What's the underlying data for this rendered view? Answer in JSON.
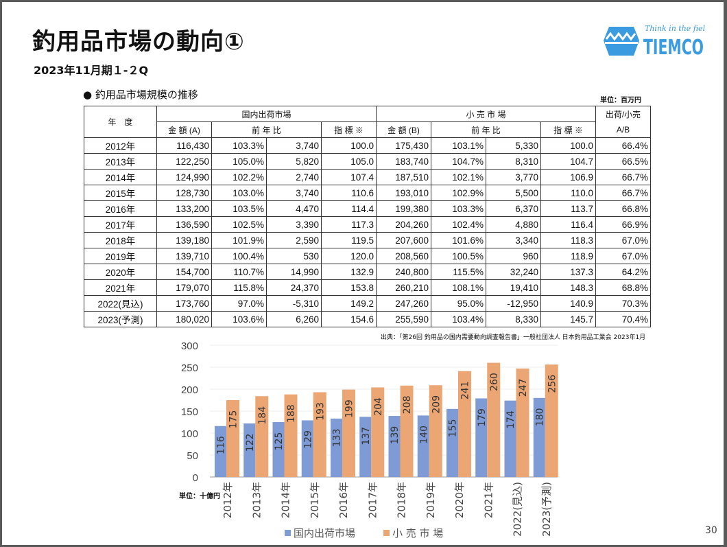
{
  "title": "釣用品市場の動向①",
  "subtitle": "2023年11月期１-２Q",
  "logo": {
    "tagline": "Think in the field.",
    "name": "TIEMCO",
    "color": "#3a9be0"
  },
  "section_title": "● 釣用品市場規模の推移",
  "unit_label": "単位：百万円",
  "table": {
    "headers": {
      "year": "年　度",
      "domestic": "国内出荷市場",
      "retail": "小 売 市 場",
      "ratio_top": "出荷/小売",
      "amount_a": "金 額 (A)",
      "yoy": "前 年 比",
      "index": "指 標 ※",
      "amount_b": "金 額 (B)",
      "ratio": "A/B"
    },
    "rows": [
      [
        "2012年",
        "116,430",
        "103.3%",
        "3,740",
        "100.0",
        "175,430",
        "103.1%",
        "5,330",
        "100.0",
        "66.4%"
      ],
      [
        "2013年",
        "122,250",
        "105.0%",
        "5,820",
        "105.0",
        "183,740",
        "104.7%",
        "8,310",
        "104.7",
        "66.5%"
      ],
      [
        "2014年",
        "124,990",
        "102.2%",
        "2,740",
        "107.4",
        "187,510",
        "102.1%",
        "3,770",
        "106.9",
        "66.7%"
      ],
      [
        "2015年",
        "128,730",
        "103.0%",
        "3,740",
        "110.6",
        "193,010",
        "102.9%",
        "5,500",
        "110.0",
        "66.7%"
      ],
      [
        "2016年",
        "133,200",
        "103.5%",
        "4,470",
        "114.4",
        "199,380",
        "103.3%",
        "6,370",
        "113.7",
        "66.8%"
      ],
      [
        "2017年",
        "136,590",
        "102.5%",
        "3,390",
        "117.3",
        "204,260",
        "102.4%",
        "4,880",
        "116.4",
        "66.9%"
      ],
      [
        "2018年",
        "139,180",
        "101.9%",
        "2,590",
        "119.5",
        "207,600",
        "101.6%",
        "3,340",
        "118.3",
        "67.0%"
      ],
      [
        "2019年",
        "139,710",
        "100.4%",
        "530",
        "120.0",
        "208,560",
        "100.5%",
        "960",
        "118.9",
        "67.0%"
      ],
      [
        "2020年",
        "154,700",
        "110.7%",
        "14,990",
        "132.9",
        "240,800",
        "115.5%",
        "32,240",
        "137.3",
        "64.2%"
      ],
      [
        "2021年",
        "179,070",
        "115.8%",
        "24,370",
        "153.8",
        "260,210",
        "108.1%",
        "19,410",
        "148.3",
        "68.8%"
      ],
      [
        "2022(見込)",
        "173,760",
        "97.0%",
        "-5,310",
        "149.2",
        "247,260",
        "95.0%",
        "-12,950",
        "140.9",
        "70.3%"
      ],
      [
        "2023(予測)",
        "180,020",
        "103.6%",
        "6,260",
        "154.6",
        "255,590",
        "103.4%",
        "8,330",
        "145.7",
        "70.4%"
      ]
    ]
  },
  "source": "出典：「第26回 釣用品の国内需要動向調査報告書」一般社団法人 日本釣用品工業会 2023年1月",
  "page_number": "30",
  "chart_data": {
    "type": "bar",
    "unit_label": "単位：十億円",
    "categories": [
      "2012年",
      "2013年",
      "2014年",
      "2015年",
      "2016年",
      "2017年",
      "2018年",
      "2019年",
      "2020年",
      "2021年",
      "2022(見込)",
      "2023(予測)"
    ],
    "series": [
      {
        "name": "国内出荷市場",
        "color": "#7f9bd6",
        "values": [
          116,
          122,
          125,
          129,
          133,
          137,
          139,
          140,
          155,
          179,
          174,
          180
        ]
      },
      {
        "name": "小 売 市 場",
        "color": "#eca673",
        "values": [
          175,
          184,
          188,
          193,
          199,
          204,
          208,
          209,
          241,
          260,
          247,
          256
        ]
      }
    ],
    "ylim": [
      0,
      300
    ],
    "yticks": [
      0,
      50,
      100,
      150,
      200,
      250,
      300
    ],
    "grid": true,
    "legend": "bottom"
  }
}
